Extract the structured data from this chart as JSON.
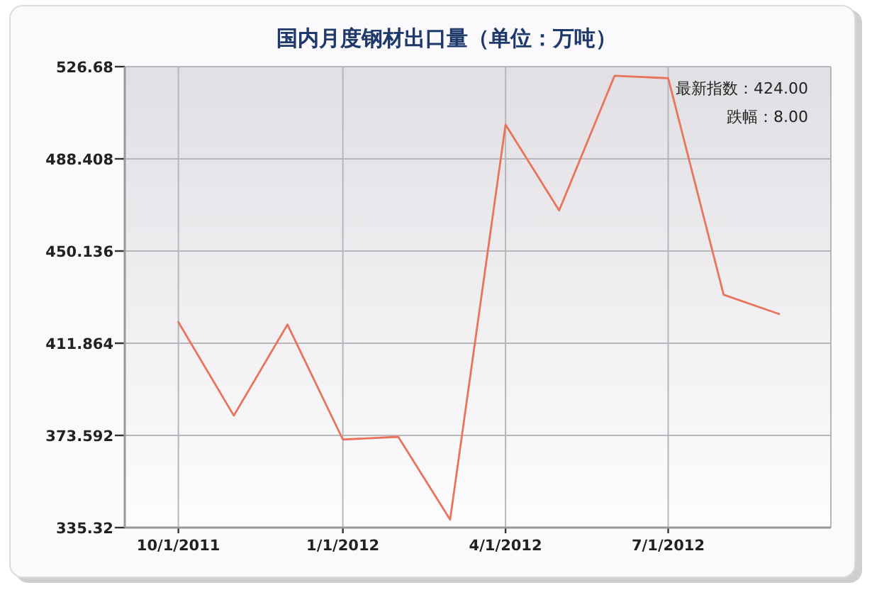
{
  "chart_data": {
    "type": "line",
    "title": "国内月度钢材出口量（单位：万吨）",
    "annotations": [
      "最新指数：424.00",
      "跌幅：8.00"
    ],
    "x": [
      "2011-10-01",
      "2011-11-01",
      "2011-12-01",
      "2012-01-01",
      "2012-02-01",
      "2012-03-01",
      "2012-04-01",
      "2012-05-01",
      "2012-06-01",
      "2012-07-01",
      "2012-08-01",
      "2012-09-01"
    ],
    "values": [
      420.6,
      381.8,
      419.6,
      371.9,
      373.0,
      338.6,
      502.6,
      467.0,
      522.9,
      521.9,
      432.0,
      424.0
    ],
    "color": "#e8745c",
    "line_style": "solid",
    "grid": true,
    "xlim": [
      "2011-09-01",
      "2012-09-30"
    ],
    "xticks": [
      {
        "value": "2011-10-01",
        "label": "10/1/2011"
      },
      {
        "value": "2012-01-01",
        "label": "1/1/2012"
      },
      {
        "value": "2012-04-01",
        "label": "4/1/2012"
      },
      {
        "value": "2012-07-01",
        "label": "7/1/2012"
      }
    ],
    "ylim": [
      335.32,
      526.68
    ],
    "yticks": [
      335.32,
      373.592,
      411.864,
      450.136,
      488.408,
      526.68
    ]
  }
}
